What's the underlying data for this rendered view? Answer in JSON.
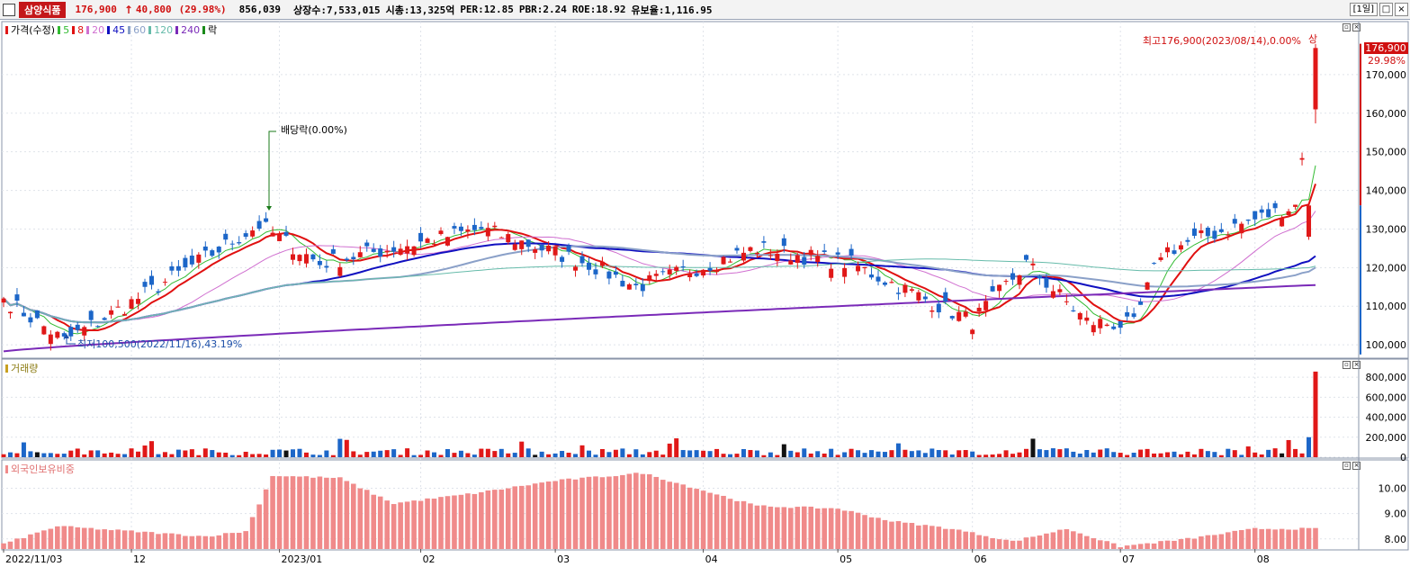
{
  "header": {
    "stock_name": "삼양식품",
    "price": "176,900",
    "change_arrow": "↑",
    "change": "40,800",
    "change_pct": "(29.98%)",
    "volume": "856,039",
    "listed_shares": "상장수:7,533,015",
    "market_cap": "시총:13,325억",
    "per": "PER:12.85",
    "pbr": "PBR:2.24",
    "roe": "ROE:18.92",
    "reserve_ratio": "유보율:1,116.95",
    "period_button": "[1일]",
    "max_btn": "□",
    "close_btn": "×"
  },
  "price_panel": {
    "legend": {
      "price_label": "가격(수정)",
      "ma": [
        {
          "label": "5",
          "color": "#33bb33"
        },
        {
          "label": "8",
          "color": "#e01010"
        },
        {
          "label": "20",
          "color": "#d070d0"
        },
        {
          "label": "45",
          "color": "#1010c0"
        },
        {
          "label": "60",
          "color": "#8aa0c8"
        },
        {
          "label": "120",
          "color": "#66bbaa"
        },
        {
          "label": "240",
          "color": "#7a2ab8"
        }
      ],
      "drop_label": "락"
    },
    "y_ticks": [
      "170,000",
      "160,000",
      "150,000",
      "140,000",
      "130,000",
      "120,000",
      "110,000",
      "100,000"
    ],
    "current_price_tag": "176,900",
    "current_pct_tag": "29.98%",
    "annotation_high": "최고176,900(2023/08/14),0.00%",
    "annotation_high_mark": "상",
    "annotation_low": "최저100,500(2022/11/16),43.19%",
    "annotation_dividend": "배당락(0.00%)"
  },
  "volume_panel": {
    "label": "거래량",
    "y_ticks": [
      "800,000",
      "600,000",
      "400,000",
      "200,000",
      "0"
    ]
  },
  "foreign_panel": {
    "label": "외국인보유비중",
    "y_ticks": [
      "10.00",
      "9.00",
      "8.00"
    ]
  },
  "x_axis": {
    "labels": [
      "2022/11/03",
      "12",
      "2023/01",
      "02",
      "03",
      "04",
      "05",
      "06",
      "07",
      "08"
    ]
  },
  "colors": {
    "up": "#e01818",
    "down": "#1c66c8",
    "foreign_bar": "#f08a8a",
    "accent_red": "#c4171a"
  },
  "chart_data": [
    {
      "type": "candlestick",
      "title": "삼양식품 가격(수정)",
      "x_range": [
        "2022/11/03",
        "2023/08/14"
      ],
      "ylim": [
        97000,
        180000
      ],
      "series": [
        {
          "name": "가격(수정)",
          "values_summary": {
            "start": 110000,
            "low": 100500,
            "high": 176900,
            "last": 176900
          }
        },
        {
          "name": "5",
          "color": "#33bb33"
        },
        {
          "name": "8",
          "color": "#e01010"
        },
        {
          "name": "20",
          "color": "#d070d0"
        },
        {
          "name": "45",
          "color": "#1010c0"
        },
        {
          "name": "60",
          "color": "#8aa0c8"
        },
        {
          "name": "120",
          "color": "#66bbaa"
        },
        {
          "name": "240",
          "color": "#7a2ab8"
        }
      ],
      "keypoints": [
        {
          "x": "2022/11/03",
          "close": 112000
        },
        {
          "x": "2022/11/16",
          "close": 101000
        },
        {
          "x": "2022/12/01",
          "close": 111000
        },
        {
          "x": "2022/12/28",
          "close": 131000
        },
        {
          "x": "2023/01/10",
          "close": 121000
        },
        {
          "x": "2023/02/15",
          "close": 130000
        },
        {
          "x": "2023/03/10",
          "close": 121000
        },
        {
          "x": "2023/03/20",
          "close": 115000
        },
        {
          "x": "2023/04/15",
          "close": 125000
        },
        {
          "x": "2023/05/05",
          "close": 121000
        },
        {
          "x": "2023/05/31",
          "close": 106000
        },
        {
          "x": "2023/06/12",
          "close": 121000
        },
        {
          "x": "2023/06/25",
          "close": 106000
        },
        {
          "x": "2023/07/05",
          "close": 105000
        },
        {
          "x": "2023/07/12",
          "close": 124000
        },
        {
          "x": "2023/08/10",
          "close": 136100
        },
        {
          "x": "2023/08/14",
          "close": 176900
        }
      ]
    },
    {
      "type": "bar",
      "title": "거래량",
      "ylim": [
        0,
        900000
      ],
      "series": [
        {
          "name": "거래량",
          "values_summary": {
            "typical": 60000,
            "max": 856039
          }
        }
      ]
    },
    {
      "type": "bar",
      "title": "외국인보유비중",
      "ylim": [
        7.6,
        10.8
      ],
      "series": [
        {
          "name": "외국인보유비중",
          "values_summary": {
            "min": 7.7,
            "max": 10.5,
            "last": 8.5
          }
        }
      ]
    }
  ]
}
